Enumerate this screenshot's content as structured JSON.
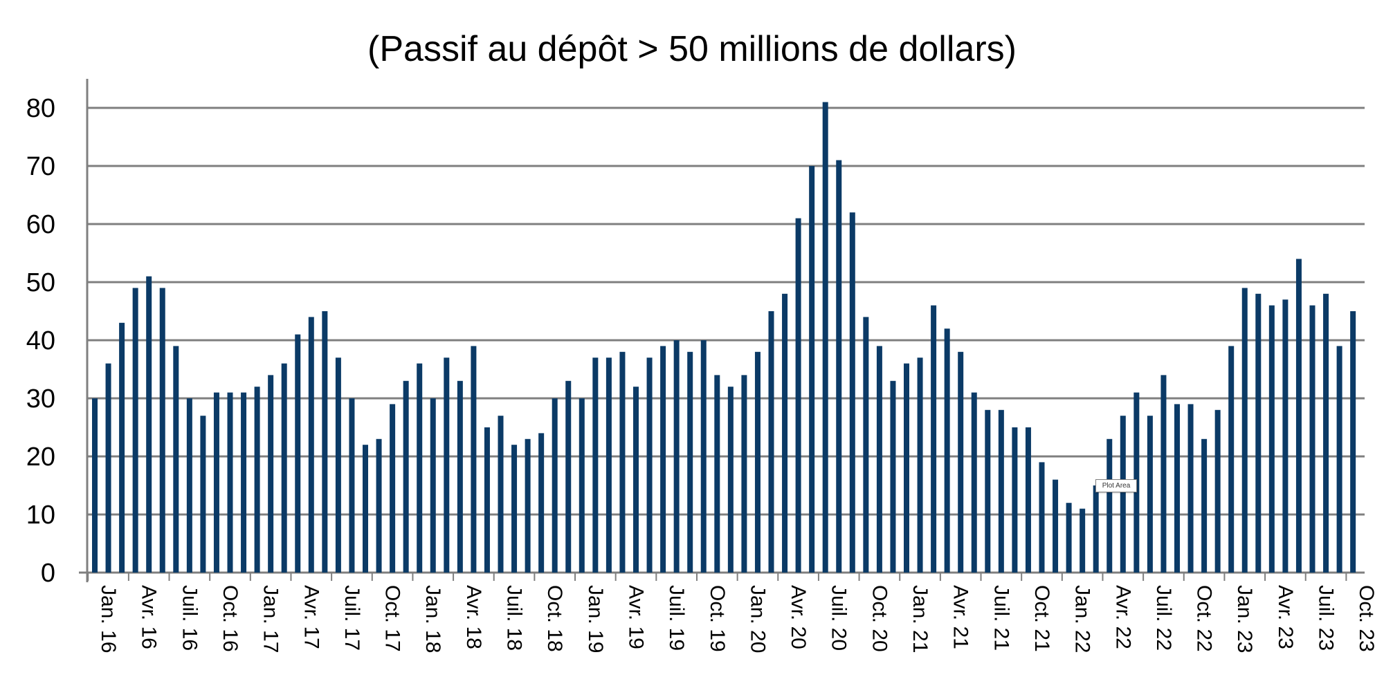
{
  "chart_data": {
    "type": "bar",
    "title": "(Passif au dépôt > 50 millions de dollars)",
    "xlabel": "",
    "ylabel": "",
    "ylim": [
      0,
      85
    ],
    "yticks": [
      0,
      10,
      20,
      30,
      40,
      50,
      60,
      70,
      80
    ],
    "grid": true,
    "bar_color": "#0b3a66",
    "grid_color": "#7f7f7f",
    "tick_labels": [
      "Jan. 16",
      "Avr. 16",
      "Juil. 16",
      "Oct. 16",
      "Jan. 17",
      "Avr. 17",
      "Juil. 17",
      "Oct. 17",
      "Jan. 18",
      "Avr. 18",
      "Juil. 18",
      "Oct. 18",
      "Jan. 19",
      "Avr. 19",
      "Juil. 19",
      "Oct. 19",
      "Jan. 20",
      "Avr. 20",
      "Juil. 20",
      "Oct. 20",
      "Jan. 21",
      "Avr. 21",
      "Juil. 21",
      "Oct. 21",
      "Jan. 22",
      "Avr. 22",
      "Juil. 22",
      "Oct. 22",
      "Jan. 23",
      "Avr. 23",
      "Juil. 23",
      "Oct. 23"
    ],
    "values": [
      30,
      36,
      43,
      49,
      51,
      49,
      39,
      30,
      27,
      31,
      31,
      31,
      32,
      34,
      36,
      41,
      44,
      45,
      37,
      30,
      22,
      23,
      29,
      33,
      36,
      30,
      37,
      33,
      39,
      25,
      27,
      22,
      23,
      24,
      30,
      33,
      30,
      37,
      37,
      38,
      32,
      37,
      39,
      40,
      38,
      40,
      34,
      32,
      34,
      38,
      45,
      48,
      61,
      70,
      81,
      71,
      62,
      44,
      39,
      33,
      36,
      37,
      46,
      42,
      38,
      31,
      28,
      28,
      25,
      25,
      19,
      16,
      12,
      11,
      15,
      23,
      27,
      31,
      27,
      34,
      29,
      29,
      23,
      28,
      39,
      49,
      48,
      46,
      47,
      54,
      46,
      48,
      39,
      45
    ]
  },
  "tooltip": {
    "label": "Plot Area"
  }
}
